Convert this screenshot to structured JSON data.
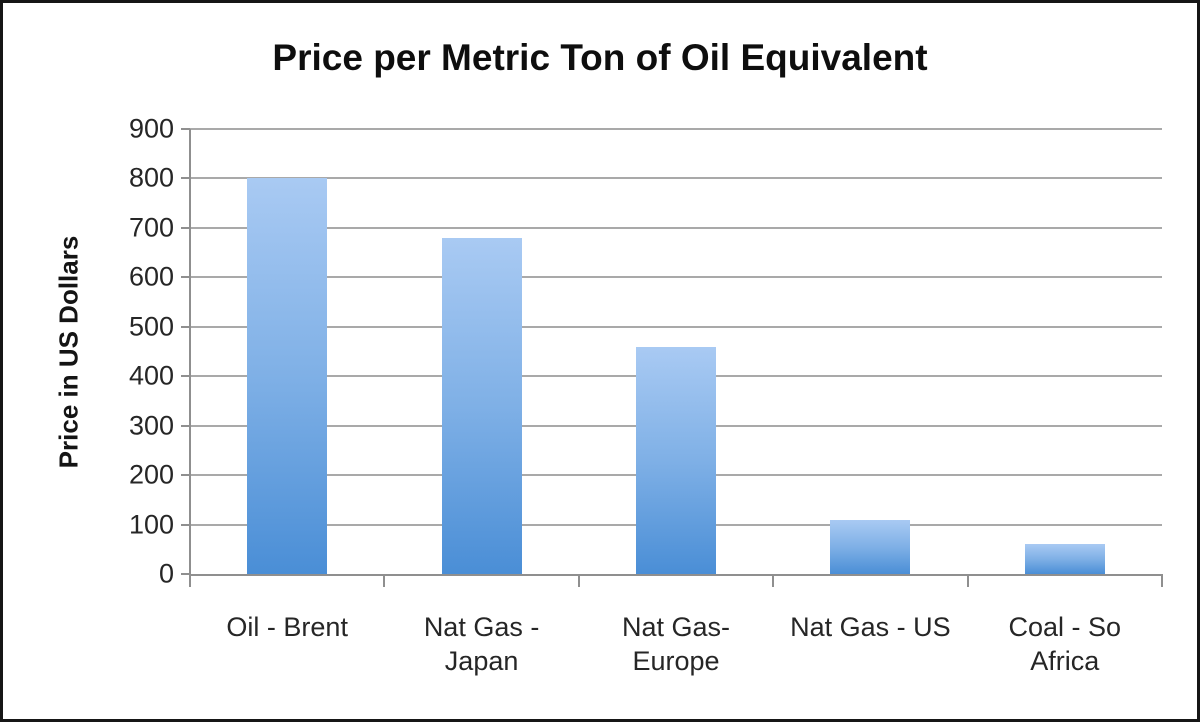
{
  "chart_data": {
    "type": "bar",
    "title": "Price per Metric Ton of Oil Equivalent",
    "ylabel": "Price in US Dollars",
    "xlabel": "",
    "categories": [
      "Oil - Brent",
      "Nat Gas - Japan",
      "Nat Gas- Europe",
      "Nat Gas - US",
      "Coal - So Africa"
    ],
    "category_label_lines": [
      [
        "Oil - Brent"
      ],
      [
        "Nat Gas -",
        "Japan"
      ],
      [
        "Nat Gas-",
        "Europe"
      ],
      [
        "Nat Gas - US"
      ],
      [
        "Coal - So",
        "Africa"
      ]
    ],
    "values": [
      800,
      680,
      460,
      110,
      60
    ],
    "ylim": [
      0,
      900
    ],
    "ytick_step": 100,
    "ytick_labels": [
      "0",
      "100",
      "200",
      "300",
      "400",
      "500",
      "600",
      "700",
      "800",
      "900"
    ],
    "grid": "horizontal",
    "legend": "none",
    "colors": {
      "bar_gradient_top": "#a9caf3",
      "bar_gradient_bottom": "#4a8ed6",
      "gridline": "#a9a9a9",
      "axis": "#8f8f8f",
      "text": "#262626",
      "title_text": "#0e0e0e",
      "frame_border": "#161616",
      "background": "#ffffff"
    }
  }
}
